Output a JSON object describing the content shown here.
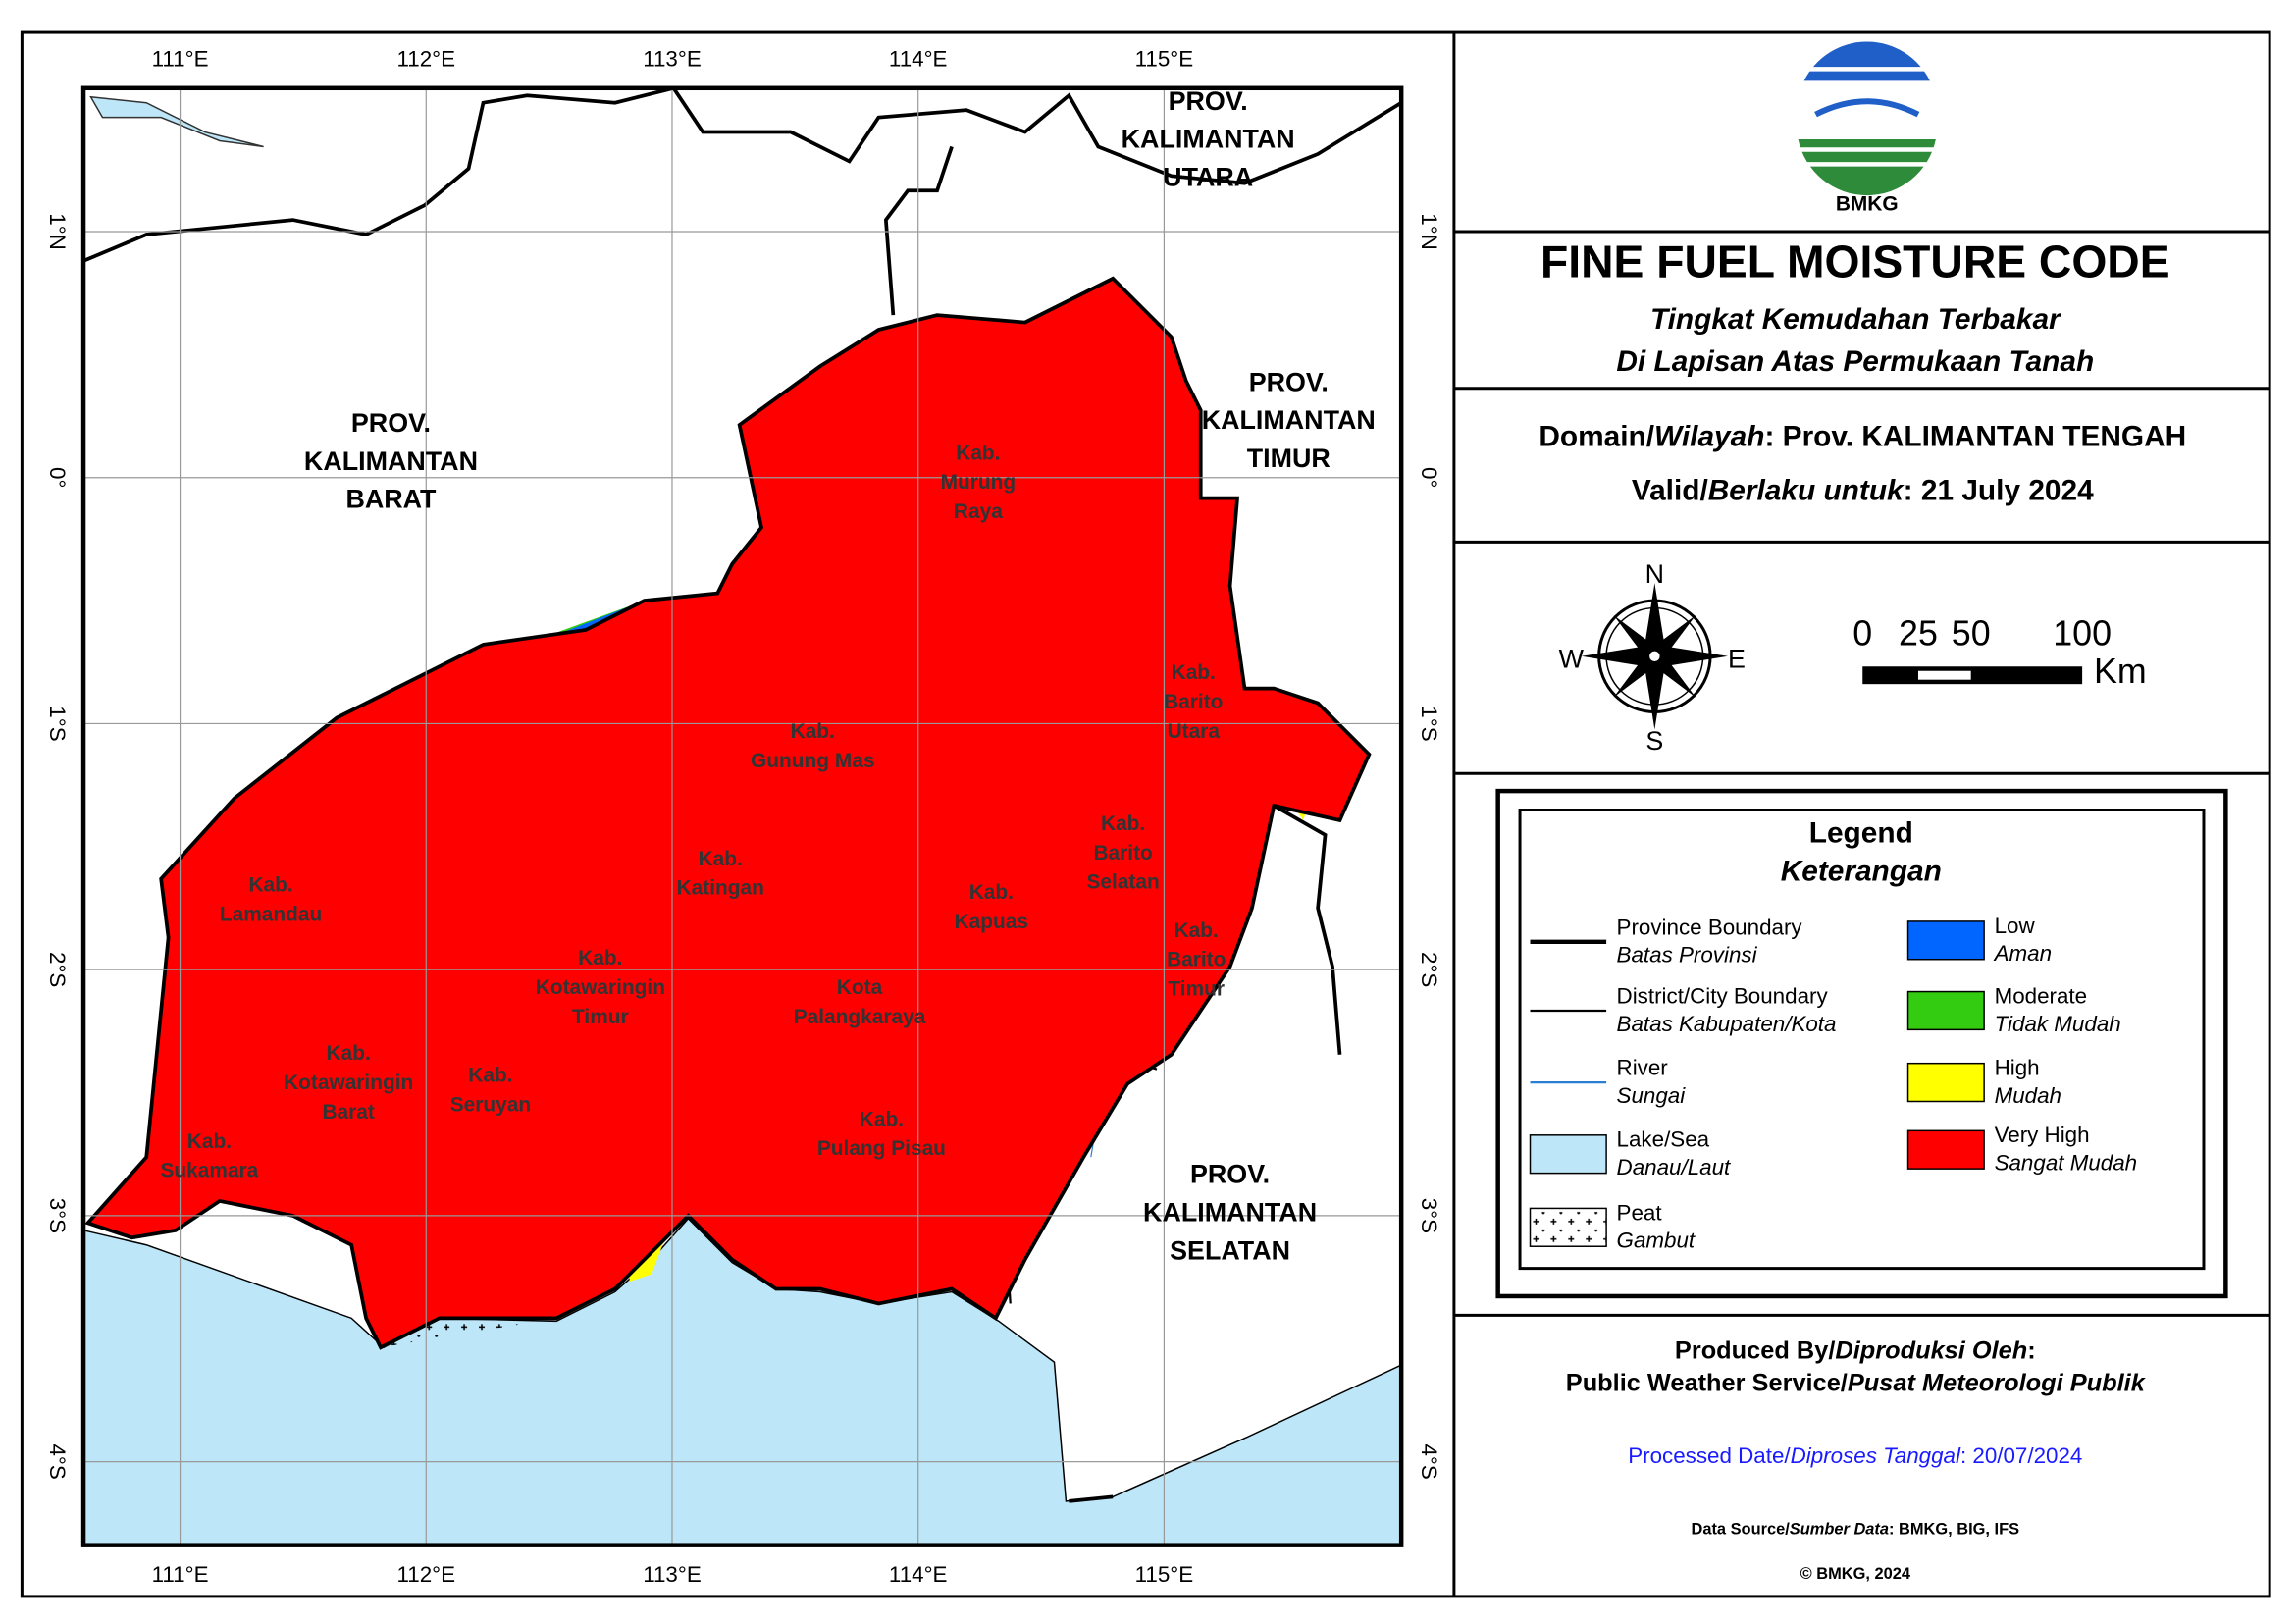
{
  "map": {
    "graticule": {
      "lon": [
        {
          "value": 111,
          "label": "111°E"
        },
        {
          "value": 112,
          "label": "112°E"
        },
        {
          "value": 113,
          "label": "113°E"
        },
        {
          "value": 114,
          "label": "114°E"
        },
        {
          "value": 115,
          "label": "115°E"
        }
      ],
      "lat": [
        {
          "value": 1,
          "label": "1°N"
        },
        {
          "value": 0,
          "label": "0°"
        },
        {
          "value": -1,
          "label": "1°S"
        },
        {
          "value": -2,
          "label": "2°S"
        },
        {
          "value": -3,
          "label": "3°S"
        },
        {
          "value": -4,
          "label": "4°S"
        }
      ]
    },
    "provinces": [
      {
        "lines": [
          "PROV.",
          "KALIMANTAN",
          "BARAT"
        ]
      },
      {
        "lines": [
          "PROV.",
          "KALIMANTAN",
          "UTARA"
        ]
      },
      {
        "lines": [
          "PROV.",
          "KALIMANTAN",
          "TIMUR"
        ]
      },
      {
        "lines": [
          "PROV.",
          "KALIMANTAN",
          "SELATAN"
        ]
      }
    ],
    "districts": [
      {
        "lines": [
          "Kab.",
          "Murung",
          "Raya"
        ]
      },
      {
        "lines": [
          "Kab.",
          "Barito",
          "Utara"
        ]
      },
      {
        "lines": [
          "Kab.",
          "Gunung Mas"
        ]
      },
      {
        "lines": [
          "Kab.",
          "Katingan"
        ]
      },
      {
        "lines": [
          "Kab.",
          "Barito",
          "Selatan"
        ]
      },
      {
        "lines": [
          "Kab.",
          "Kapuas"
        ]
      },
      {
        "lines": [
          "Kab.",
          "Barito",
          "Timur"
        ]
      },
      {
        "lines": [
          "Kab.",
          "Lamandau"
        ]
      },
      {
        "lines": [
          "Kab.",
          "Kotawaringin",
          "Timur"
        ]
      },
      {
        "lines": [
          "Kota",
          "Palangkaraya"
        ]
      },
      {
        "lines": [
          "Kab.",
          "Kotawaringin",
          "Barat"
        ]
      },
      {
        "lines": [
          "Kab.",
          "Seruyan"
        ]
      },
      {
        "lines": [
          "Kab.",
          "Sukamara"
        ]
      },
      {
        "lines": [
          "Kab.",
          "Pulang Pisau"
        ]
      }
    ]
  },
  "header": {
    "logo_text": "BMKG",
    "title": "FINE FUEL MOISTURE CODE",
    "subtitle_lines": [
      "Tingkat Kemudahan Terbakar",
      "Di Lapisan Atas Permukaan Tanah"
    ]
  },
  "info": {
    "domain": [
      "Domain/",
      "Wilayah",
      ": Prov. KALIMANTAN TENGAH"
    ],
    "valid": [
      "Valid/",
      "Berlaku untuk",
      ": 21 July 2024"
    ]
  },
  "compass": {
    "n": "N",
    "s": "S",
    "e": "E",
    "w": "W"
  },
  "scale": {
    "labels": [
      "0",
      "25",
      "50",
      "100"
    ],
    "unit": "Km"
  },
  "legend": {
    "title": "Legend",
    "subtitle": "Keterangan",
    "items": [
      {
        "name": "Province Boundary",
        "name_id": "Batas Provinsi"
      },
      {
        "name": "District/City Boundary",
        "name_id": "Batas Kabupaten/Kota"
      },
      {
        "name": "River",
        "name_id": "Sungai"
      },
      {
        "name": "Lake/Sea",
        "name_id": "Danau/Laut",
        "color": "#bde6f8"
      },
      {
        "name": "Peat",
        "name_id": "Gambut"
      },
      {
        "name": "Low",
        "name_id": "Aman",
        "color": "#0066ff"
      },
      {
        "name": "Moderate",
        "name_id": "Tidak Mudah",
        "color": "#33cc11"
      },
      {
        "name": "High",
        "name_id": "Mudah",
        "color": "#ffff00"
      },
      {
        "name": "Very High",
        "name_id": "Sangat Mudah",
        "color": "#ff0000"
      }
    ]
  },
  "footer": {
    "produced": [
      "Produced By/",
      "Diproduksi Oleh",
      ":"
    ],
    "service": [
      "Public Weather Service/",
      "Pusat Meteorologi Publik"
    ],
    "processed": [
      "Processed Date/",
      "Diproses Tanggal",
      ": 20/07/2024"
    ],
    "source": [
      "Data Source/",
      "Sumber Data",
      ": BMKG, BIG, IFS"
    ],
    "copyright": "© BMKG, 2024"
  }
}
